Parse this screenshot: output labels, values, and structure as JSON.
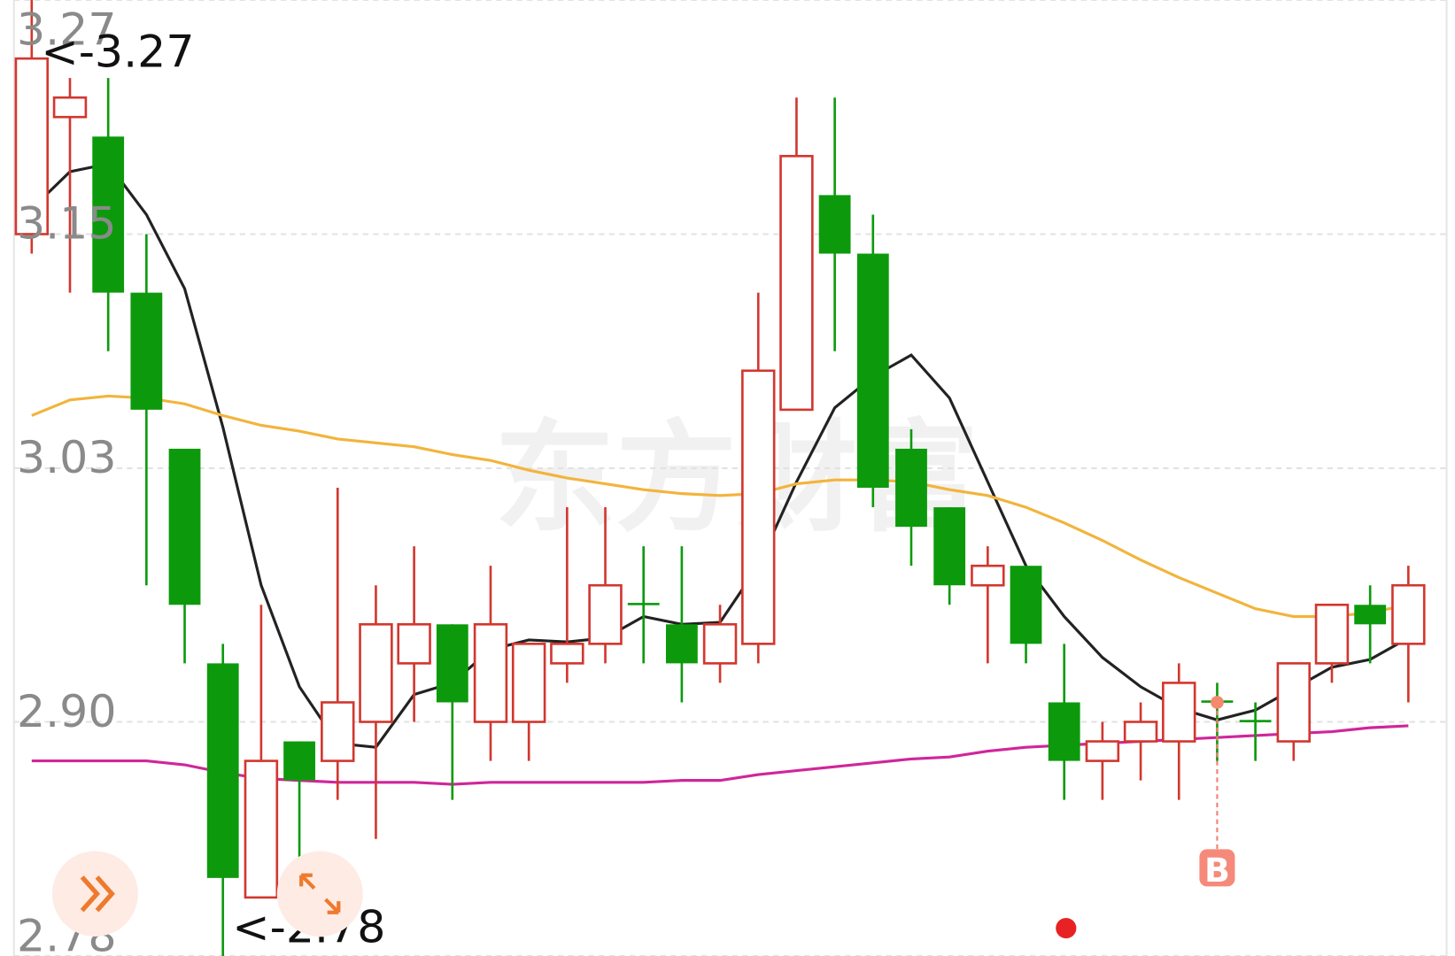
{
  "chart_data": {
    "type": "candlestick",
    "watermark": "东方财富",
    "open": [
      3.15,
      3.21,
      3.2,
      3.12,
      3.04,
      2.93,
      2.81,
      2.89,
      2.88,
      2.9,
      2.93,
      2.95,
      2.9,
      2.9,
      2.93,
      2.94,
      2.961,
      2.95,
      2.93,
      2.94,
      3.06,
      3.17,
      3.14,
      3.04,
      3.01,
      2.97,
      2.98,
      2.91,
      2.88,
      2.89,
      2.89,
      2.911,
      2.901,
      2.89,
      2.93,
      2.96,
      2.94
    ],
    "high": [
      3.27,
      3.23,
      3.23,
      3.15,
      3.04,
      2.94,
      2.96,
      2.89,
      3.02,
      2.97,
      2.99,
      2.95,
      2.98,
      2.94,
      3.01,
      3.01,
      2.99,
      2.99,
      2.96,
      3.12,
      3.22,
      3.22,
      3.16,
      3.05,
      3.01,
      2.99,
      2.98,
      2.94,
      2.9,
      2.91,
      2.93,
      2.92,
      2.91,
      2.93,
      2.96,
      2.97,
      2.98
    ],
    "low": [
      3.14,
      3.12,
      3.09,
      2.97,
      2.93,
      2.78,
      2.81,
      2.83,
      2.86,
      2.84,
      2.9,
      2.86,
      2.88,
      2.88,
      2.92,
      2.93,
      2.93,
      2.91,
      2.92,
      2.93,
      3.06,
      3.09,
      3.01,
      2.98,
      2.96,
      2.93,
      2.93,
      2.86,
      2.86,
      2.87,
      2.86,
      2.88,
      2.88,
      2.88,
      2.92,
      2.93,
      2.91
    ],
    "close": [
      3.24,
      3.22,
      3.12,
      3.06,
      2.96,
      2.82,
      2.88,
      2.87,
      2.91,
      2.95,
      2.95,
      2.91,
      2.95,
      2.94,
      2.94,
      2.97,
      2.96,
      2.93,
      2.95,
      3.08,
      3.19,
      3.14,
      3.02,
      3.0,
      2.97,
      2.98,
      2.94,
      2.88,
      2.89,
      2.9,
      2.92,
      2.91,
      2.9,
      2.93,
      2.96,
      2.95,
      2.97
    ],
    "up_color": "#d2372f",
    "down_color": "#0c9a0c",
    "series": [
      {
        "color": "#222222",
        "values": [
          3.163,
          3.182,
          3.186,
          3.16,
          3.122,
          3.051,
          2.97,
          2.918,
          2.889,
          2.887,
          2.914,
          2.92,
          2.937,
          2.942,
          2.941,
          2.943,
          2.954,
          2.95,
          2.951,
          2.98,
          3.023,
          3.061,
          3.077,
          3.088,
          3.066,
          3.023,
          2.98,
          2.954,
          2.933,
          2.918,
          2.907,
          2.901,
          2.906,
          2.917,
          2.928,
          2.932,
          2.943
        ]
      },
      {
        "color": "#f2b43c",
        "values": [
          3.057,
          3.065,
          3.067,
          3.066,
          3.063,
          3.057,
          3.052,
          3.049,
          3.045,
          3.043,
          3.041,
          3.037,
          3.034,
          3.029,
          3.025,
          3.022,
          3.019,
          3.017,
          3.016,
          3.017,
          3.022,
          3.024,
          3.024,
          3.023,
          3.019,
          3.016,
          3.01,
          3.002,
          2.993,
          2.983,
          2.974,
          2.966,
          2.958,
          2.954,
          2.954,
          2.956,
          2.96
        ]
      },
      {
        "color": "#d0269a",
        "values": [
          2.88,
          2.88,
          2.88,
          2.88,
          2.878,
          2.874,
          2.871,
          2.87,
          2.869,
          2.869,
          2.869,
          2.868,
          2.869,
          2.869,
          2.869,
          2.869,
          2.869,
          2.87,
          2.87,
          2.873,
          2.875,
          2.877,
          2.879,
          2.881,
          2.882,
          2.885,
          2.887,
          2.888,
          2.889,
          2.89,
          2.891,
          2.892,
          2.893,
          2.894,
          2.895,
          2.897,
          2.898
        ]
      }
    ],
    "ylim": [
      2.78,
      3.27
    ],
    "yticks": [
      3.27,
      3.15,
      3.03,
      {
        "value": 2.9,
        "label": "2.90"
      },
      2.78
    ],
    "grid": true,
    "annotations": [
      {
        "text": "<-3.27",
        "index": 0,
        "at": "high"
      },
      {
        "text": "<-2.78",
        "index": 5,
        "at": "low"
      },
      {
        "text": "B",
        "index": 31,
        "at": "close"
      }
    ]
  }
}
